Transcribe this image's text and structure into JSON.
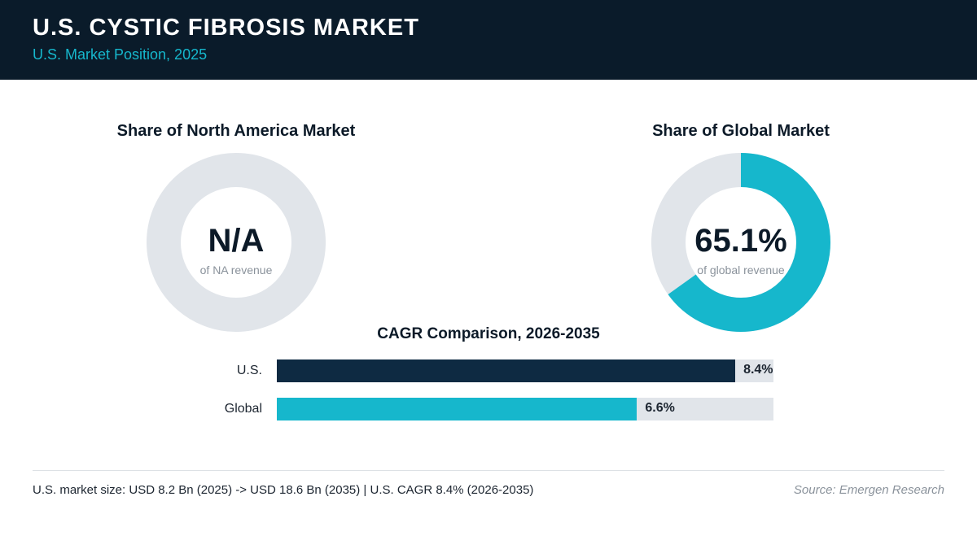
{
  "header": {
    "title": "U.S. CYSTIC FIBROSIS MARKET",
    "subtitle": "U.S. Market Position, 2025"
  },
  "colors": {
    "header_bg": "#0a1b2a",
    "accent_teal": "#16b7cc",
    "navy": "#0e2a42",
    "track_gray": "#e1e5ea"
  },
  "chart_data": [
    {
      "type": "pie",
      "title": "Share of North America Market",
      "center_value": "N/A",
      "center_label": "of NA revenue",
      "share": null
    },
    {
      "type": "pie",
      "title": "Share of Global Market",
      "center_value": "65.1%",
      "center_label": "of global revenue",
      "share": 65.1
    },
    {
      "type": "bar",
      "orientation": "horizontal",
      "title": "CAGR Comparison, 2026-2035",
      "categories": [
        "U.S.",
        "Global"
      ],
      "values": [
        8.4,
        6.6
      ],
      "value_labels": [
        "8.4%",
        "6.6%"
      ],
      "xlim": [
        0,
        9.1
      ]
    }
  ],
  "footer": {
    "note": "U.S. market size: USD 8.2 Bn (2025) -> USD 18.6 Bn (2035)  |  U.S. CAGR 8.4% (2026-2035)",
    "source": "Source: Emergen Research"
  }
}
